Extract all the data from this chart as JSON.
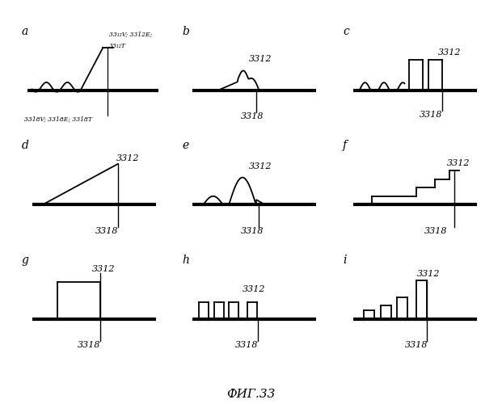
{
  "fig_title": "ФИГ.33",
  "bg": "#ffffff",
  "lw_base": 3.0,
  "lw_profile": 1.3,
  "panels": [
    {
      "label": "a",
      "type": "wavy_ramp",
      "top_label": "33₁₂V; 3312E;\n33₁₂T",
      "bottom_label": "3318V; 3318E; 3318T"
    },
    {
      "label": "b",
      "type": "smooth_bump_b",
      "top_label": "3312",
      "bottom_label": "3318"
    },
    {
      "label": "c",
      "type": "sine_then_rect_c",
      "top_label": "3312",
      "bottom_label": "3318"
    },
    {
      "label": "d",
      "type": "ramp_d",
      "top_label": "3312",
      "bottom_label": "3318"
    },
    {
      "label": "e",
      "type": "smooth_bump_e",
      "top_label": "3312",
      "bottom_label": "3318"
    },
    {
      "label": "f",
      "type": "stepped_f",
      "top_label": "3312",
      "bottom_label": "3318"
    },
    {
      "label": "g",
      "type": "single_rect_g",
      "top_label": "3312",
      "bottom_label": "3318"
    },
    {
      "label": "h",
      "type": "multi_rect_h",
      "top_label": "3312",
      "bottom_label": "3318"
    },
    {
      "label": "i",
      "type": "stepped_rect_i",
      "top_label": "3312",
      "bottom_label": "3318"
    }
  ]
}
